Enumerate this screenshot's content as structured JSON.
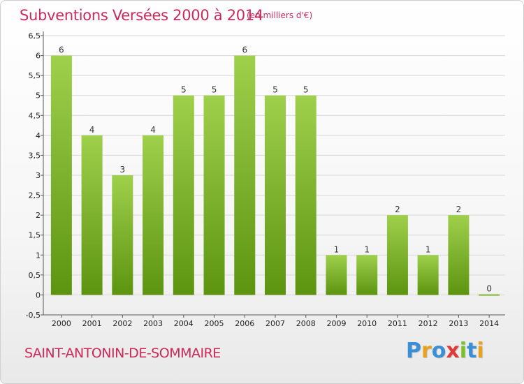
{
  "title": "Subventions Versées 2000 à 2014",
  "unit_note": "(en milliers d'€)",
  "commune": "SAINT-ANTONIN-DE-SOMMAIRE",
  "logo": {
    "text": "Proxiti",
    "letters": [
      {
        "ch": "P",
        "color": "#3a8fd6"
      },
      {
        "ch": "r",
        "color": "#e8a21f"
      },
      {
        "ch": "o",
        "color": "#3a8fd6"
      },
      {
        "ch": "x",
        "color": "#e03b3b"
      },
      {
        "ch": "i",
        "color": "#7bbf2a"
      },
      {
        "ch": "t",
        "color": "#3a8fd6"
      },
      {
        "ch": "i",
        "color": "#e8a21f"
      }
    ]
  },
  "colors": {
    "bar_top": "#9fd04c",
    "bar_bottom": "#5c9410",
    "title": "#cc2a5a"
  },
  "chart_data": {
    "type": "bar",
    "categories": [
      "2000",
      "2001",
      "2002",
      "2003",
      "2004",
      "2005",
      "2006",
      "2007",
      "2008",
      "2009",
      "2010",
      "2011",
      "2012",
      "2013",
      "2014"
    ],
    "values": [
      6,
      4,
      3,
      4,
      5,
      5,
      6,
      5,
      5,
      1,
      1,
      2,
      1,
      2,
      0
    ],
    "data_labels": [
      "6",
      "4",
      "3",
      "4",
      "5",
      "5",
      "6",
      "5",
      "5",
      "1",
      "1",
      "2",
      "1",
      "2",
      "0"
    ],
    "yticks": [
      "-0,5",
      "0",
      "0,5",
      "1",
      "1,5",
      "2",
      "2,5",
      "3",
      "3,5",
      "4",
      "4,5",
      "5",
      "5,5",
      "6",
      "6,5"
    ],
    "ylim": [
      -0.5,
      6.5
    ],
    "grid": true
  }
}
